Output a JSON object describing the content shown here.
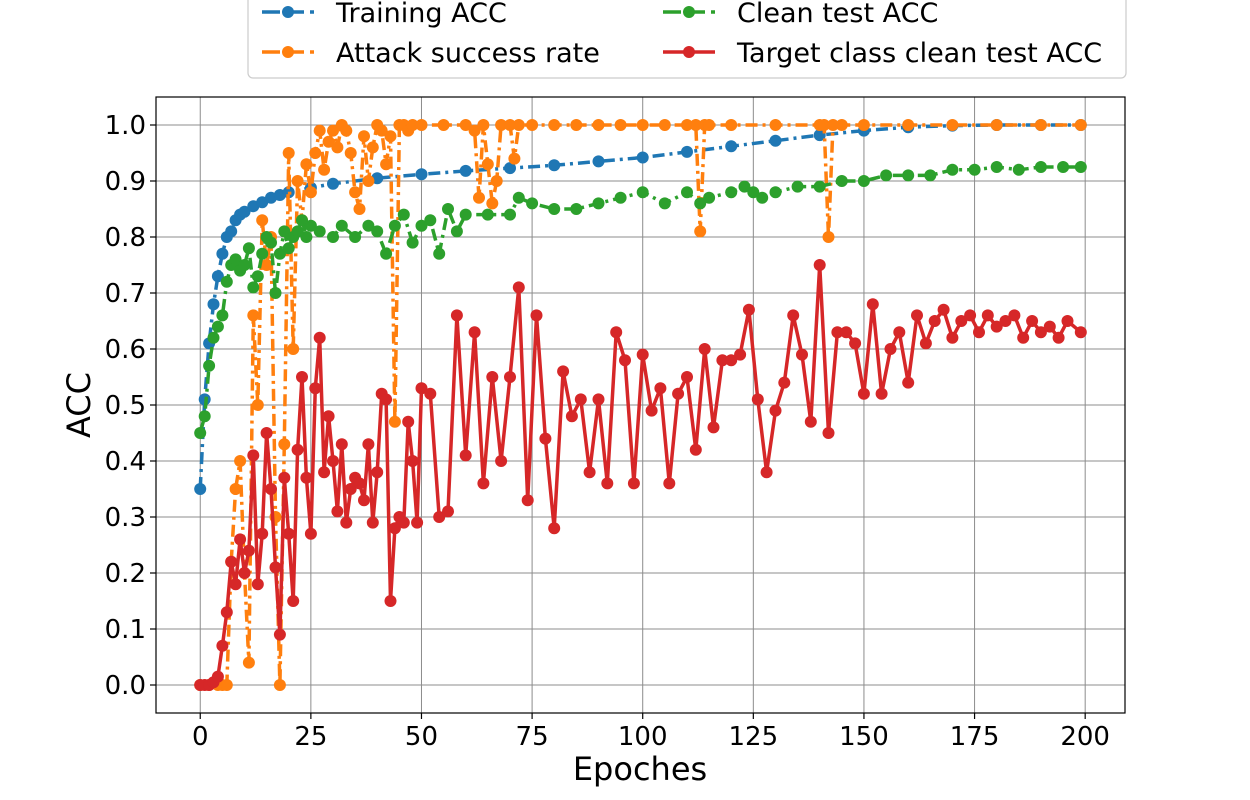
{
  "chart_data": {
    "type": "line",
    "title": "",
    "xlabel": "Epoches",
    "ylabel": "ACC",
    "xlim": [
      -10,
      209
    ],
    "ylim": [
      -0.05,
      1.05
    ],
    "xticks": [
      0,
      25,
      50,
      75,
      100,
      125,
      150,
      175,
      200
    ],
    "xtick_labels": [
      "0",
      "25",
      "50",
      "75",
      "100",
      "125",
      "150",
      "175",
      "200"
    ],
    "yticks": [
      0.0,
      0.1,
      0.2,
      0.3,
      0.4,
      0.5,
      0.6,
      0.7,
      0.8,
      0.9,
      1.0
    ],
    "ytick_labels": [
      "0.0",
      "0.1",
      "0.2",
      "0.3",
      "0.4",
      "0.5",
      "0.6",
      "0.7",
      "0.8",
      "0.9",
      "1.0"
    ],
    "grid": true,
    "legend_position": "top, above plot, 2 columns",
    "series": [
      {
        "name": "Training ACC",
        "color": "#1f77b4",
        "linestyle": "dashdot",
        "x": [
          0,
          1,
          2,
          3,
          4,
          5,
          6,
          7,
          8,
          9,
          10,
          12,
          14,
          16,
          18,
          20,
          25,
          30,
          40,
          50,
          60,
          70,
          80,
          90,
          100,
          110,
          120,
          130,
          140,
          150,
          160,
          170,
          180,
          190,
          199
        ],
        "values": [
          0.35,
          0.51,
          0.61,
          0.68,
          0.73,
          0.77,
          0.8,
          0.81,
          0.83,
          0.84,
          0.845,
          0.855,
          0.862,
          0.87,
          0.875,
          0.88,
          0.888,
          0.895,
          0.905,
          0.912,
          0.918,
          0.923,
          0.928,
          0.935,
          0.942,
          0.952,
          0.962,
          0.972,
          0.982,
          0.99,
          0.996,
          0.999,
          1.0,
          1.0,
          1.0
        ]
      },
      {
        "name": "Attack success rate",
        "color": "#ff7f0e",
        "linestyle": "dashdot",
        "x": [
          0,
          2,
          4,
          5,
          6,
          7,
          8,
          9,
          10,
          11,
          12,
          13,
          14,
          15,
          16,
          17,
          18,
          19,
          20,
          21,
          22,
          23,
          24,
          25,
          26,
          27,
          28,
          29,
          30,
          31,
          32,
          33,
          34,
          35,
          36,
          37,
          38,
          39,
          40,
          41,
          42,
          43,
          44,
          45,
          46,
          47,
          48,
          50,
          55,
          60,
          62,
          63,
          64,
          65,
          66,
          67,
          68,
          70,
          71,
          72,
          75,
          80,
          85,
          90,
          95,
          100,
          105,
          110,
          112,
          113,
          114,
          115,
          120,
          130,
          140,
          141,
          142,
          143,
          145,
          150,
          160,
          170,
          180,
          190,
          199
        ],
        "values": [
          0.0,
          0.0,
          0.0,
          0.0,
          0.0,
          0.22,
          0.35,
          0.4,
          0.2,
          0.04,
          0.66,
          0.5,
          0.83,
          0.75,
          0.8,
          0.3,
          0.0,
          0.43,
          0.95,
          0.6,
          0.9,
          0.83,
          0.93,
          0.88,
          0.95,
          0.99,
          0.92,
          0.97,
          0.99,
          0.96,
          1.0,
          0.99,
          0.95,
          0.88,
          0.85,
          0.98,
          0.9,
          0.96,
          1.0,
          0.99,
          0.93,
          0.98,
          0.47,
          1.0,
          1.0,
          0.99,
          1.0,
          1.0,
          1.0,
          1.0,
          0.99,
          0.87,
          1.0,
          0.93,
          0.86,
          0.9,
          1.0,
          1.0,
          0.94,
          1.0,
          1.0,
          1.0,
          1.0,
          1.0,
          1.0,
          1.0,
          1.0,
          1.0,
          1.0,
          0.81,
          1.0,
          1.0,
          1.0,
          1.0,
          1.0,
          1.0,
          0.8,
          1.0,
          1.0,
          1.0,
          1.0,
          1.0,
          1.0,
          1.0,
          1.0
        ]
      },
      {
        "name": "Clean test ACC",
        "color": "#2ca02c",
        "linestyle": "dashdot",
        "x": [
          0,
          1,
          2,
          3,
          4,
          5,
          6,
          7,
          8,
          9,
          10,
          11,
          12,
          13,
          14,
          15,
          16,
          17,
          18,
          19,
          20,
          21,
          22,
          23,
          24,
          25,
          27,
          30,
          32,
          35,
          38,
          40,
          42,
          44,
          46,
          48,
          50,
          52,
          54,
          56,
          58,
          60,
          65,
          70,
          72,
          75,
          80,
          85,
          90,
          95,
          100,
          105,
          110,
          113,
          115,
          120,
          123,
          125,
          127,
          130,
          135,
          140,
          145,
          150,
          155,
          160,
          165,
          170,
          175,
          180,
          185,
          190,
          195,
          199
        ],
        "values": [
          0.45,
          0.48,
          0.57,
          0.62,
          0.64,
          0.66,
          0.72,
          0.75,
          0.76,
          0.74,
          0.75,
          0.78,
          0.71,
          0.73,
          0.77,
          0.8,
          0.79,
          0.7,
          0.77,
          0.81,
          0.78,
          0.8,
          0.81,
          0.83,
          0.8,
          0.82,
          0.81,
          0.8,
          0.82,
          0.8,
          0.82,
          0.81,
          0.77,
          0.82,
          0.84,
          0.79,
          0.82,
          0.83,
          0.77,
          0.85,
          0.81,
          0.84,
          0.84,
          0.84,
          0.87,
          0.86,
          0.85,
          0.85,
          0.86,
          0.87,
          0.88,
          0.86,
          0.88,
          0.86,
          0.87,
          0.88,
          0.89,
          0.88,
          0.87,
          0.88,
          0.89,
          0.89,
          0.9,
          0.9,
          0.91,
          0.91,
          0.91,
          0.92,
          0.92,
          0.925,
          0.92,
          0.925,
          0.925,
          0.925
        ]
      },
      {
        "name": "Target class clean test ACC",
        "color": "#d62728",
        "linestyle": "solid",
        "x": [
          0,
          1,
          2,
          3,
          4,
          5,
          6,
          7,
          8,
          9,
          10,
          11,
          12,
          13,
          14,
          15,
          16,
          17,
          18,
          19,
          20,
          21,
          22,
          23,
          24,
          25,
          26,
          27,
          28,
          29,
          30,
          31,
          32,
          33,
          34,
          35,
          36,
          37,
          38,
          39,
          40,
          41,
          42,
          43,
          44,
          45,
          46,
          47,
          48,
          49,
          50,
          52,
          54,
          56,
          58,
          60,
          62,
          64,
          66,
          68,
          70,
          72,
          74,
          76,
          78,
          80,
          82,
          84,
          86,
          88,
          90,
          92,
          94,
          96,
          98,
          100,
          102,
          104,
          106,
          108,
          110,
          112,
          114,
          116,
          118,
          120,
          122,
          124,
          126,
          128,
          130,
          132,
          134,
          136,
          138,
          140,
          142,
          144,
          146,
          148,
          150,
          152,
          154,
          156,
          158,
          160,
          162,
          164,
          166,
          168,
          170,
          172,
          174,
          176,
          178,
          180,
          182,
          184,
          186,
          188,
          190,
          192,
          194,
          196,
          199
        ],
        "values": [
          0.0,
          0.0,
          0.0,
          0.005,
          0.015,
          0.07,
          0.13,
          0.22,
          0.18,
          0.26,
          0.2,
          0.24,
          0.41,
          0.18,
          0.27,
          0.45,
          0.35,
          0.21,
          0.09,
          0.37,
          0.27,
          0.15,
          0.42,
          0.55,
          0.37,
          0.27,
          0.53,
          0.62,
          0.38,
          0.48,
          0.4,
          0.31,
          0.43,
          0.29,
          0.35,
          0.37,
          0.36,
          0.33,
          0.43,
          0.29,
          0.38,
          0.52,
          0.51,
          0.15,
          0.28,
          0.3,
          0.29,
          0.47,
          0.4,
          0.29,
          0.53,
          0.52,
          0.3,
          0.31,
          0.66,
          0.41,
          0.63,
          0.36,
          0.55,
          0.4,
          0.55,
          0.71,
          0.33,
          0.66,
          0.44,
          0.28,
          0.56,
          0.48,
          0.51,
          0.38,
          0.51,
          0.36,
          0.63,
          0.58,
          0.36,
          0.59,
          0.49,
          0.53,
          0.36,
          0.52,
          0.55,
          0.42,
          0.6,
          0.46,
          0.58,
          0.58,
          0.59,
          0.67,
          0.51,
          0.38,
          0.49,
          0.54,
          0.66,
          0.59,
          0.47,
          0.75,
          0.45,
          0.63,
          0.63,
          0.61,
          0.52,
          0.68,
          0.52,
          0.6,
          0.63,
          0.54,
          0.66,
          0.61,
          0.65,
          0.67,
          0.62,
          0.65,
          0.66,
          0.63,
          0.66,
          0.64,
          0.65,
          0.66,
          0.62,
          0.65,
          0.63,
          0.64,
          0.62,
          0.65,
          0.63
        ]
      }
    ]
  }
}
